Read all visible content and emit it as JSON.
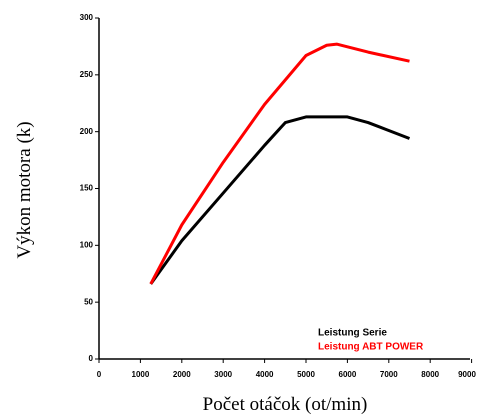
{
  "chart_data": {
    "type": "line",
    "x_label": "Počet otáčok (ot/min)",
    "y_label": "Výkon motora (k)",
    "xlim": [
      0,
      9000
    ],
    "xticks": [
      0,
      1000,
      2000,
      3000,
      4000,
      5000,
      6000,
      7000,
      8000,
      9000
    ],
    "ylim": [
      0,
      300
    ],
    "yticks": [
      0,
      50,
      100,
      150,
      200,
      250,
      300
    ],
    "series": [
      {
        "name": "Leistung Serie",
        "color": "#000000",
        "x": [
          1250,
          2000,
          3000,
          4000,
          4500,
          5000,
          6000,
          6500,
          7500
        ],
        "values": [
          66,
          104,
          146,
          188,
          208,
          213,
          213,
          208,
          194
        ]
      },
      {
        "name": "Leistung ABT POWER",
        "color": "#ff0000",
        "x": [
          1250,
          2000,
          3000,
          4000,
          5000,
          5500,
          5750,
          6500,
          7500
        ],
        "values": [
          66,
          118,
          173,
          224,
          267,
          276,
          277,
          270,
          262
        ]
      }
    ]
  }
}
